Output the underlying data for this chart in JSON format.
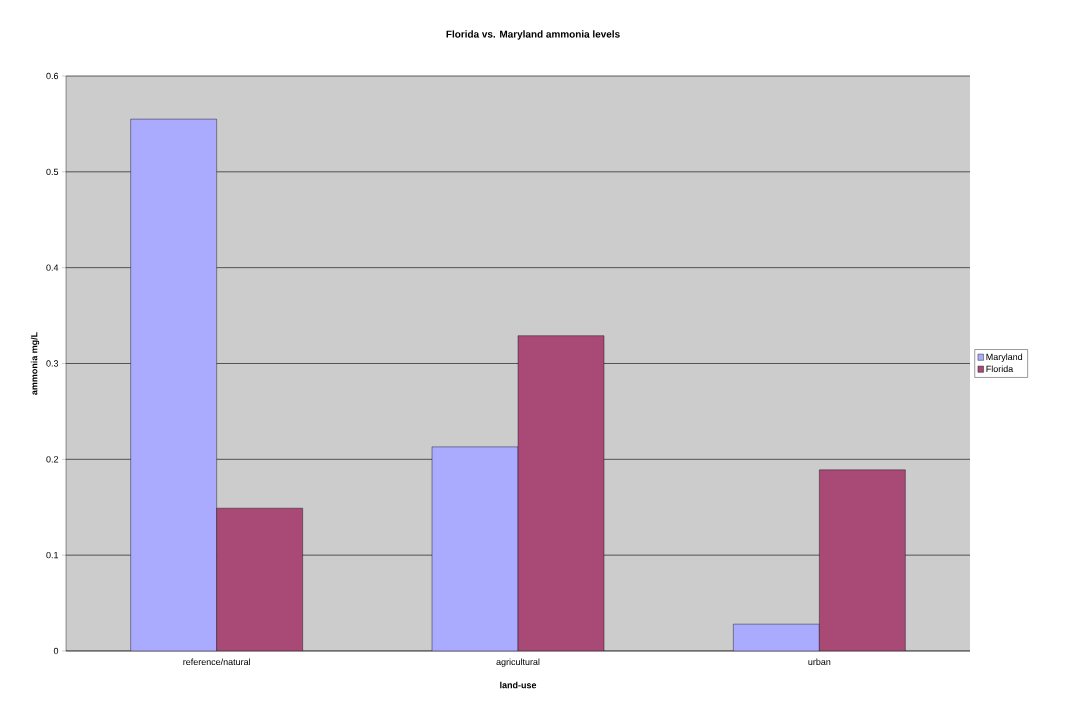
{
  "chart_data": {
    "type": "bar",
    "title": "Florida vs. Maryland ammonia levels",
    "xlabel": "land-use",
    "ylabel": "ammonia mg/L",
    "categories": [
      "reference/natural",
      "agricultural",
      "urban"
    ],
    "series": [
      {
        "name": "Maryland",
        "color": "#aaaaff",
        "values": [
          0.555,
          0.213,
          0.028
        ]
      },
      {
        "name": "Florida",
        "color": "#a94a76",
        "values": [
          0.149,
          0.329,
          0.189
        ]
      }
    ],
    "ylim": [
      0,
      0.6
    ],
    "yticks": [
      0,
      0.1,
      0.2,
      0.3,
      0.4,
      0.5,
      0.6
    ],
    "grid": "y",
    "legend": "right"
  }
}
